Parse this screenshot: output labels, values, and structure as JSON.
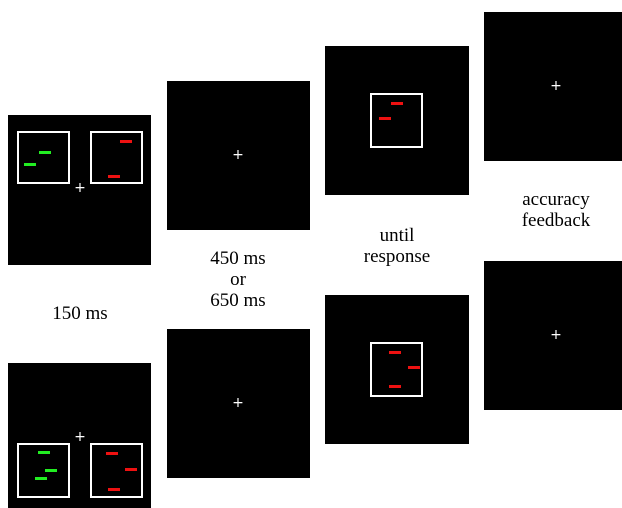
{
  "fixation_symbol": "+",
  "colors": {
    "background": "#ffffff",
    "panel": "#000000",
    "frame": "#ffffff",
    "green": "#22ee22",
    "red": "#ee1111"
  },
  "labels": {
    "stimulus_duration": "150 ms",
    "delay": [
      "450 ms",
      "or",
      "650 ms"
    ],
    "probe": [
      "until",
      "response"
    ],
    "feedback": [
      "accuracy",
      "feedback"
    ]
  }
}
